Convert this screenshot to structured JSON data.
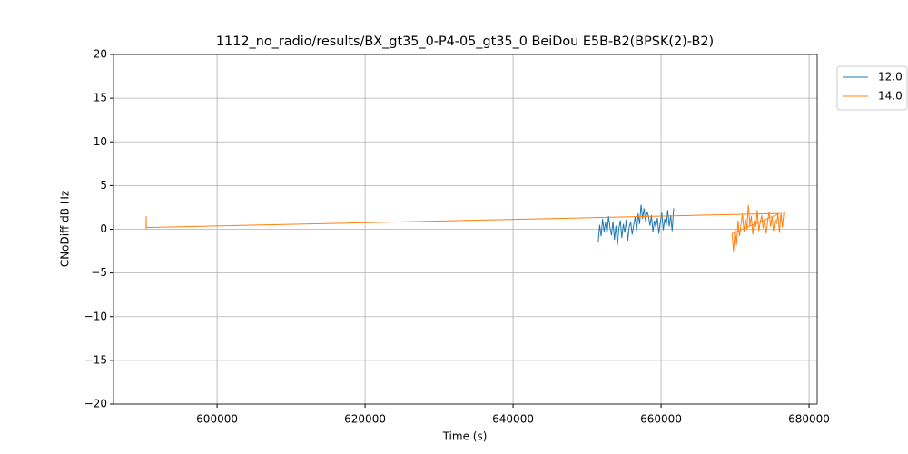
{
  "chart_data": {
    "type": "line",
    "title": "1112_no_radio/results/BX_gt35_0-P4-05_gt35_0 BeiDou E5B-B2(BPSK(2)-B2)",
    "xlabel": "Time (s)",
    "ylabel": "CNoDiff dB Hz",
    "xlim": [
      586000,
      681100
    ],
    "ylim": [
      -20,
      20
    ],
    "xticks": [
      600000,
      620000,
      640000,
      660000,
      680000
    ],
    "yticks": [
      {
        "value": -20,
        "label": "−20"
      },
      {
        "value": -15,
        "label": "−15"
      },
      {
        "value": -10,
        "label": "−10"
      },
      {
        "value": -5,
        "label": "−5"
      },
      0,
      5,
      10,
      15,
      20
    ],
    "grid": true,
    "legend": "upper right outside",
    "series": [
      {
        "name": "12.0",
        "color": "#1f77b4",
        "x": [
          651500,
          651700,
          651900,
          652100,
          652300,
          652500,
          652700,
          652900,
          653100,
          653300,
          653500,
          653700,
          653900,
          654100,
          654300,
          654500,
          654700,
          654900,
          655100,
          655300,
          655500,
          655700,
          655900,
          656100,
          656300,
          656500,
          656700,
          656900,
          657100,
          657300,
          657500,
          657700,
          657900,
          658100,
          658300,
          658500,
          658700,
          658900,
          659100,
          659300,
          659500,
          659700,
          659900,
          660100,
          660300,
          660500,
          660700,
          660900,
          661100,
          661300,
          661500,
          661700
        ],
        "values": [
          -1.5,
          0.5,
          -0.8,
          1.2,
          -0.3,
          0.8,
          -0.5,
          1.5,
          0.2,
          -0.7,
          0.9,
          -1.2,
          0.4,
          -1.8,
          0.1,
          1.0,
          -1.0,
          0.6,
          -0.4,
          1.1,
          -1.3,
          0.3,
          0.8,
          -0.6,
          0.5,
          1.4,
          -0.2,
          1.8,
          0.6,
          2.8,
          1.2,
          2.4,
          0.9,
          2.0,
          1.5,
          0.4,
          1.6,
          -0.3,
          1.0,
          0.2,
          1.3,
          -0.5,
          0.8,
          1.9,
          -0.1,
          1.2,
          0.4,
          2.2,
          0.3,
          1.6,
          -0.2,
          2.4
        ]
      },
      {
        "name": "14.0",
        "color": "#ff7f0e",
        "x": [
          590400,
          590420,
          590440,
          676000,
          669600,
          669800,
          670000,
          670200,
          670400,
          670600,
          670800,
          671000,
          671200,
          671400,
          671600,
          671800,
          672000,
          672200,
          672400,
          672600,
          672800,
          673000,
          673200,
          673400,
          673600,
          673800,
          674000,
          674200,
          674400,
          674600,
          674800,
          675000,
          675200,
          675400,
          675600,
          675800,
          676000,
          676200,
          676400,
          676600
        ],
        "values": [
          0,
          1.5,
          0.2,
          1.8,
          -0.5,
          -2.5,
          0.2,
          -1.8,
          1.0,
          -0.8,
          0.5,
          1.8,
          -0.3,
          1.2,
          0.0,
          2.8,
          0.4,
          1.5,
          -0.6,
          1.0,
          0.3,
          2.2,
          -0.2,
          0.8,
          1.6,
          0.1,
          1.1,
          -0.5,
          0.9,
          2.0,
          0.3,
          1.4,
          -0.2,
          1.2,
          0.6,
          1.7,
          -0.4,
          1.9,
          0.2,
          2.0
        ]
      }
    ]
  }
}
